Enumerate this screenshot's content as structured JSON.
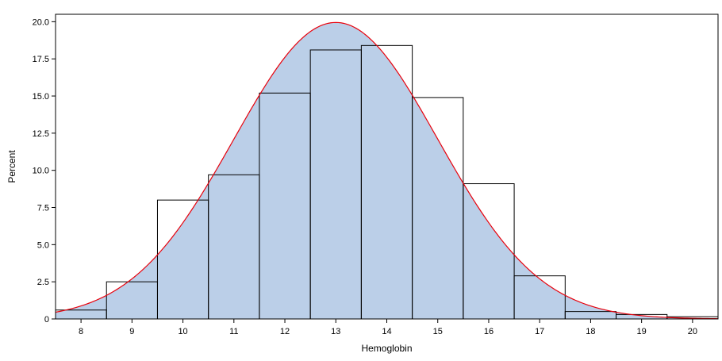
{
  "chart_data": {
    "type": "bar",
    "xlabel": "Hemoglobin",
    "ylabel": "Percent",
    "xlim": [
      7.5,
      20.5
    ],
    "ylim": [
      0,
      20.5
    ],
    "x_ticks": [
      "8",
      "9",
      "10",
      "11",
      "12",
      "13",
      "14",
      "15",
      "16",
      "17",
      "18",
      "19",
      "20"
    ],
    "y_ticks": [
      "0",
      "2.5",
      "5.0",
      "7.5",
      "10.0",
      "12.5",
      "15.0",
      "17.5",
      "20.0"
    ],
    "bins": [
      {
        "center": 8,
        "value": 0.6
      },
      {
        "center": 9,
        "value": 2.5
      },
      {
        "center": 10,
        "value": 8.0
      },
      {
        "center": 11,
        "value": 9.7
      },
      {
        "center": 12,
        "value": 15.2
      },
      {
        "center": 13,
        "value": 18.1
      },
      {
        "center": 14,
        "value": 18.4
      },
      {
        "center": 15,
        "value": 14.9
      },
      {
        "center": 16,
        "value": 9.1
      },
      {
        "center": 17,
        "value": 2.9
      },
      {
        "center": 18,
        "value": 0.5
      },
      {
        "center": 19,
        "value": 0.3
      },
      {
        "center": 20,
        "value": 0.15
      }
    ],
    "bin_width": 1,
    "normal_curve": {
      "mean": 13.0,
      "sd": 2.0,
      "peak": 19.95,
      "color": "#e8000b"
    },
    "fill_color": "#bbcfe8",
    "edge_color": "#000000",
    "grid": false,
    "legend": "none"
  }
}
